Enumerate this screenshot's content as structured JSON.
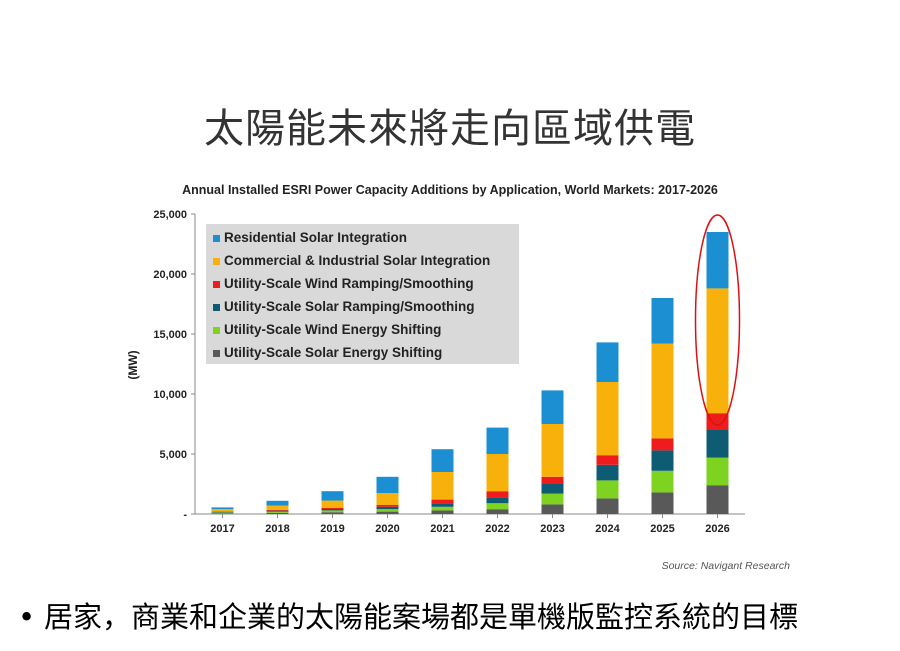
{
  "slide": {
    "title": "太陽能未來將走向區域供電",
    "bullet_marker": "•",
    "bullet_text": "居家，商業和企業的太陽能案場都是單機版監控系統的目標"
  },
  "chart_data": {
    "type": "bar",
    "stacked": true,
    "title": "Annual Installed ESRI Power Capacity Additions by Application, World Markets: 2017-2026",
    "ylabel": "(MW)",
    "xlabel": "",
    "ylim": [
      0,
      25000
    ],
    "yticks": [
      "-",
      "5,000",
      "10,000",
      "15,000",
      "20,000",
      "25,000"
    ],
    "categories": [
      "2017",
      "2018",
      "2019",
      "2020",
      "2021",
      "2022",
      "2023",
      "2024",
      "2025",
      "2026"
    ],
    "series": [
      {
        "name": "Utility-Scale Solar Energy Shifting",
        "color": "#595959",
        "values": [
          60,
          100,
          150,
          200,
          300,
          400,
          800,
          1300,
          1800,
          2400
        ]
      },
      {
        "name": "Utility-Scale Wind Energy Shifting",
        "color": "#7ed321",
        "values": [
          60,
          100,
          150,
          200,
          300,
          500,
          900,
          1500,
          1800,
          2300
        ]
      },
      {
        "name": "Utility-Scale Solar Ramping/Smoothing",
        "color": "#0d5c73",
        "values": [
          40,
          80,
          120,
          200,
          300,
          500,
          800,
          1300,
          1700,
          2300
        ]
      },
      {
        "name": "Utility-Scale Wind Ramping/Smoothing",
        "color": "#ee1c1c",
        "values": [
          40,
          70,
          100,
          150,
          300,
          500,
          600,
          800,
          1000,
          1400
        ]
      },
      {
        "name": "Commercial & Industrial Solar Integration",
        "color": "#f7b10a",
        "values": [
          200,
          350,
          600,
          1000,
          2300,
          3100,
          4400,
          6100,
          7900,
          10400
        ]
      },
      {
        "name": "Residential Solar Integration",
        "color": "#1b8fd1",
        "values": [
          150,
          400,
          780,
          1350,
          1900,
          2200,
          2800,
          3300,
          3800,
          4700
        ]
      }
    ],
    "legend_position": "top-left",
    "legend_order": [
      "Residential Solar Integration",
      "Commercial & Industrial Solar Integration",
      "Utility-Scale Wind Ramping/Smoothing",
      "Utility-Scale Solar Ramping/Smoothing",
      "Utility-Scale Wind Energy Shifting",
      "Utility-Scale Solar Energy Shifting"
    ],
    "grid": false,
    "source": "Source: Navigant Research",
    "annotation": {
      "type": "ellipse",
      "target": "2026",
      "color": "#dd1111"
    }
  }
}
